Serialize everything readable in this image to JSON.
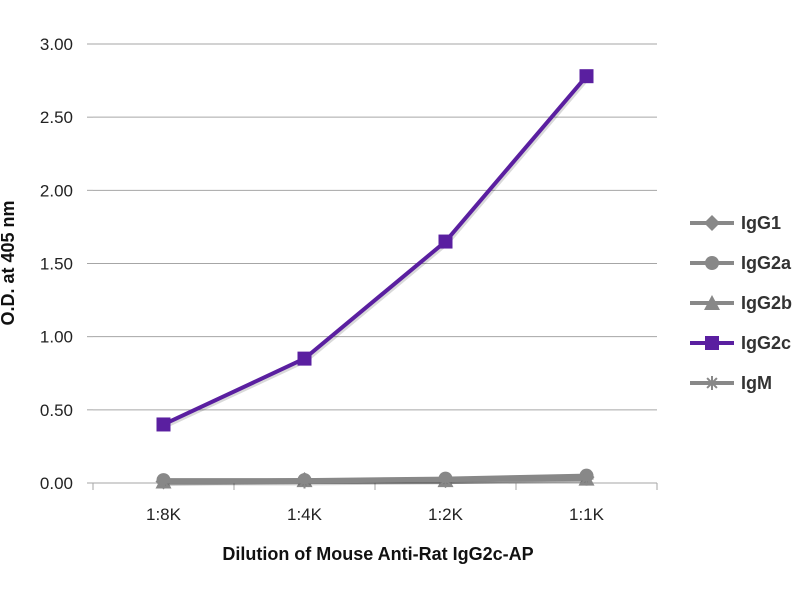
{
  "chart_data": {
    "type": "line",
    "title": "",
    "xlabel": "Dilution of Mouse Anti-Rat IgG2c-AP",
    "ylabel": "O.D. at 405 nm",
    "categories": [
      "1:8K",
      "1:4K",
      "1:2K",
      "1:1K"
    ],
    "ylim": [
      0,
      3
    ],
    "yticks": [
      "0.00",
      "0.50",
      "1.00",
      "1.50",
      "2.00",
      "2.50",
      "3.00"
    ],
    "grid": true,
    "legend_position": "right",
    "series": [
      {
        "name": "IgG1",
        "values": [
          0.01,
          0.02,
          0.02,
          0.04
        ],
        "color": "#888888",
        "marker": "diamond"
      },
      {
        "name": "IgG2a",
        "values": [
          0.02,
          0.02,
          0.03,
          0.05
        ],
        "color": "#888888",
        "marker": "circle"
      },
      {
        "name": "IgG2b",
        "values": [
          0.01,
          0.02,
          0.02,
          0.03
        ],
        "color": "#888888",
        "marker": "triangle"
      },
      {
        "name": "IgG2c",
        "values": [
          0.4,
          0.85,
          1.65,
          2.78
        ],
        "color": "#5a1fa0",
        "marker": "square"
      },
      {
        "name": "IgM",
        "values": [
          0.01,
          0.01,
          0.02,
          0.03
        ],
        "color": "#888888",
        "marker": "star"
      }
    ]
  }
}
